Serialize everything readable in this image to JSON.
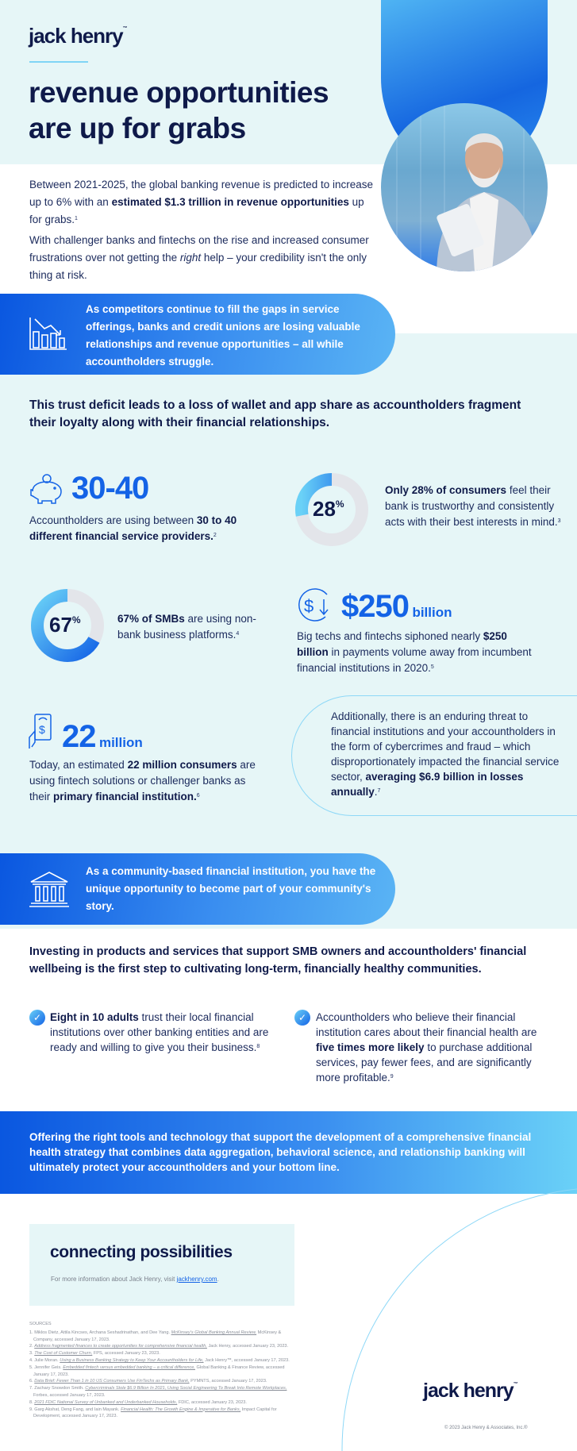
{
  "brand": {
    "logo": "jack henry",
    "tm": "™"
  },
  "header": {
    "title_line1": "revenue opportunities",
    "title_line2": "are up for grabs"
  },
  "intro": {
    "p1_a": "Between 2021-2025, the global banking revenue is predicted to increase up to 6% with an ",
    "p1_b": "estimated $1.3 trillion in revenue opportunities",
    "p1_c": " up for grabs.",
    "p1_sup": "1",
    "p2_a": "With challenger banks and fintechs on the rise and increased consumer frustrations over not getting the ",
    "p2_b": "right",
    "p2_c": " help – your credibility isn't the only thing at risk."
  },
  "banner1": {
    "icon": "declining-bar-chart-icon",
    "text": "As competitors continue to fill the gaps in service offerings, banks and credit unions are losing valuable relationships and revenue opportunities – all while accountholders struggle."
  },
  "section_heading": "This trust deficit leads to a loss of wallet and app share as accountholders fragment their loyalty along with their financial relationships.",
  "stats": {
    "providers": {
      "icon": "piggy-bank-icon",
      "value": "30-40",
      "text_a": "Accountholders are using between ",
      "text_b": "30 to 40 different financial service providers.",
      "sup": "2"
    },
    "trust": {
      "value": "28",
      "pct": "%",
      "percent": 28,
      "text_a": "Only 28% of consumers",
      "text_b": " feel their bank is trustworthy and consistently acts with their best interests in mind.",
      "sup": "3"
    },
    "smb": {
      "value": "67",
      "pct": "%",
      "percent": 67,
      "text_a": "67% of SMBs",
      "text_b": " are using non-bank business platforms.",
      "sup": "4"
    },
    "payments": {
      "icon": "dollar-down-arrow-icon",
      "value": "$250",
      "unit": "billion",
      "text_a": "Big techs and fintechs siphoned nearly ",
      "text_b": "$250 billion",
      "text_c": " in payments volume away from incumbent financial institutions in 2020.",
      "sup": "5"
    },
    "consumers": {
      "icon": "mobile-payment-icon",
      "value": "22",
      "unit": "million",
      "text_a": "Today, an estimated ",
      "text_b": "22 million consumers",
      "text_c": " are using fintech solutions or challenger banks as their ",
      "text_d": "primary financial institution.",
      "sup": "6"
    },
    "threat": {
      "text_a": "Additionally, there is an enduring threat to financial institutions and your accountholders in the form of cybercrimes and fraud – which disproportionately impacted the financial service sector, ",
      "text_b": "averaging $6.9 billion in losses annually",
      "text_c": ".",
      "sup": "7"
    }
  },
  "banner2": {
    "icon": "bank-building-icon",
    "text": "As a community-based financial institution, you have the unique opportunity to become part of your community's story."
  },
  "section2_heading": "Investing in products and services that support SMB owners and accountholders' financial wellbeing is the first step to cultivating long-term, financially healthy communities.",
  "checks": [
    {
      "a": "Eight in 10 adults",
      "b": " trust their local financial institutions over other banking entities and are ready and willing to give you their business.",
      "sup": "8"
    },
    {
      "a": "Accountholders who believe their financial institution cares about their financial health are ",
      "b": "five times more likely",
      "c": " to purchase additional services, pay fewer fees, and are significantly more profitable.",
      "sup": "9"
    }
  ],
  "closing": "Offering the right tools and technology that support the development of a comprehensive financial health strategy that combines data aggregation, behavioral science, and relationship banking will ultimately protect your accountholders and your bottom line.",
  "connect": {
    "title": "connecting possibilities",
    "text": "For more information about Jack Henry, visit ",
    "link": "jackhenry.com",
    "end": "."
  },
  "sources": {
    "heading": "SOURCES",
    "items": [
      {
        "pre": "1. Miklos Dietz, Attila Kincses, Archana Seshadrinathan, and Dee Yang. ",
        "title": "McKinsey's Global Banking Annual Review,",
        "post": " McKinsey & Company, accessed January 17, 2023."
      },
      {
        "pre": "2. ",
        "title": "Address fragmented finances to create opportunities for comprehensive financial health,",
        "post": " Jack Henry, accessed January 23, 2023."
      },
      {
        "pre": "3. ",
        "title": "The Cost of Customer Churn,",
        "post": " FPS, accessed January 23, 2023."
      },
      {
        "pre": "4. Julie Moran. ",
        "title": "Using a Business Banking Strategy to Keep Your Accountholders for Life,",
        "post": " Jack Henry™, accessed January 17, 2023."
      },
      {
        "pre": "5. Jennifer Geis. ",
        "title": "Embedded fintech versus embedded banking – a critical difference,",
        "post": " Global Banking & Finance Review, accessed January 17, 2023."
      },
      {
        "pre": "6. ",
        "title": "Data Brief: Fewer Than 1 in 10 US Consumers Use FinTechs as Primary Bank,",
        "post": " PYMNTS, accessed January 17, 2023."
      },
      {
        "pre": "7. Zachary Snowdon Smith. ",
        "title": "Cybercriminals Stole $6.9 Billion In 2021, Using Social Engineering To Break Into Remote Workplaces,",
        "post": " Forbes, accessed January 17, 2023."
      },
      {
        "pre": "8. ",
        "title": "2021 FDIC National Survey of Unbanked and Underbanked Households,",
        "post": " FDIC, accessed January 23, 2023."
      },
      {
        "pre": "9. Garg Akshat, Deng Fang, and Iain Mayank. ",
        "title": "Financial Health: The Growth Engine & Imperative for Banks,",
        "post": " Impact Capital for Development, accessed January 17, 2023."
      }
    ]
  },
  "footer": {
    "logo": "jack henry",
    "copyright": "© 2023 Jack Henry & Associates, Inc.®"
  },
  "colors": {
    "navy": "#0f1a4a",
    "brand_blue": "#1463e6",
    "light_bg": "#e6f6f7",
    "cyan": "#6ad1f7",
    "donut_track": "#e3e5ea"
  }
}
